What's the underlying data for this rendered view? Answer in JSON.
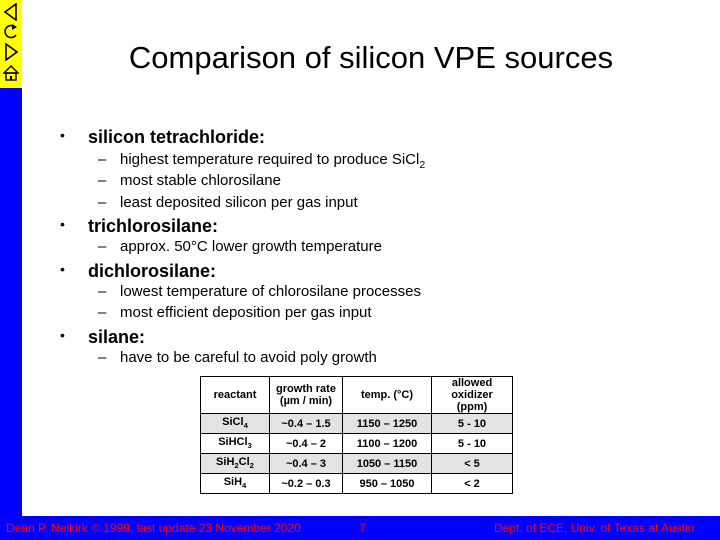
{
  "title": "Comparison of silicon VPE sources",
  "nav": {
    "items": [
      "back-icon",
      "return-icon",
      "forward-icon",
      "home-icon"
    ]
  },
  "bullets": [
    {
      "label": "silicon tetrachloride:",
      "subs": [
        "highest temperature required to produce SiCl2",
        "most stable chlorosilane",
        "least deposited silicon per gas input"
      ]
    },
    {
      "label": "trichlorosilane:",
      "subs": [
        "approx. 50°C lower growth temperature"
      ]
    },
    {
      "label": "dichlorosilane:",
      "subs": [
        "lowest temperature of chlorosilane processes",
        "most efficient deposition per gas input"
      ]
    },
    {
      "label": "silane:",
      "subs": [
        "have to be careful to avoid poly growth"
      ]
    }
  ],
  "bullet_marker": "•",
  "sub_marker": "–",
  "table": {
    "headers": [
      "reactant",
      "growth rate (µm / min)",
      "temp. (°C)",
      "allowed oxidizer (ppm)"
    ],
    "rows": [
      [
        "SiCl4",
        "~0.4 – 1.5",
        "1150 – 1250",
        "5 - 10"
      ],
      [
        "SiHCl3",
        "~0.4 – 2",
        "1100 – 1200",
        "5 - 10"
      ],
      [
        "SiH2Cl2",
        "~0.4 – 3",
        "1050 – 1150",
        "< 5"
      ],
      [
        "SiH4",
        "~0.2 – 0.3",
        "950 – 1050",
        "< 2"
      ]
    ]
  },
  "footer": {
    "author": "Dean P. Neikirk © 1999, last update 23 November 2020",
    "page": "7",
    "dept": "Dept. of ECE, Univ. of Texas at Austin"
  },
  "colors": {
    "frame": "#0000ff",
    "nav": "#ffff00",
    "footer_text": "#ff0000"
  }
}
